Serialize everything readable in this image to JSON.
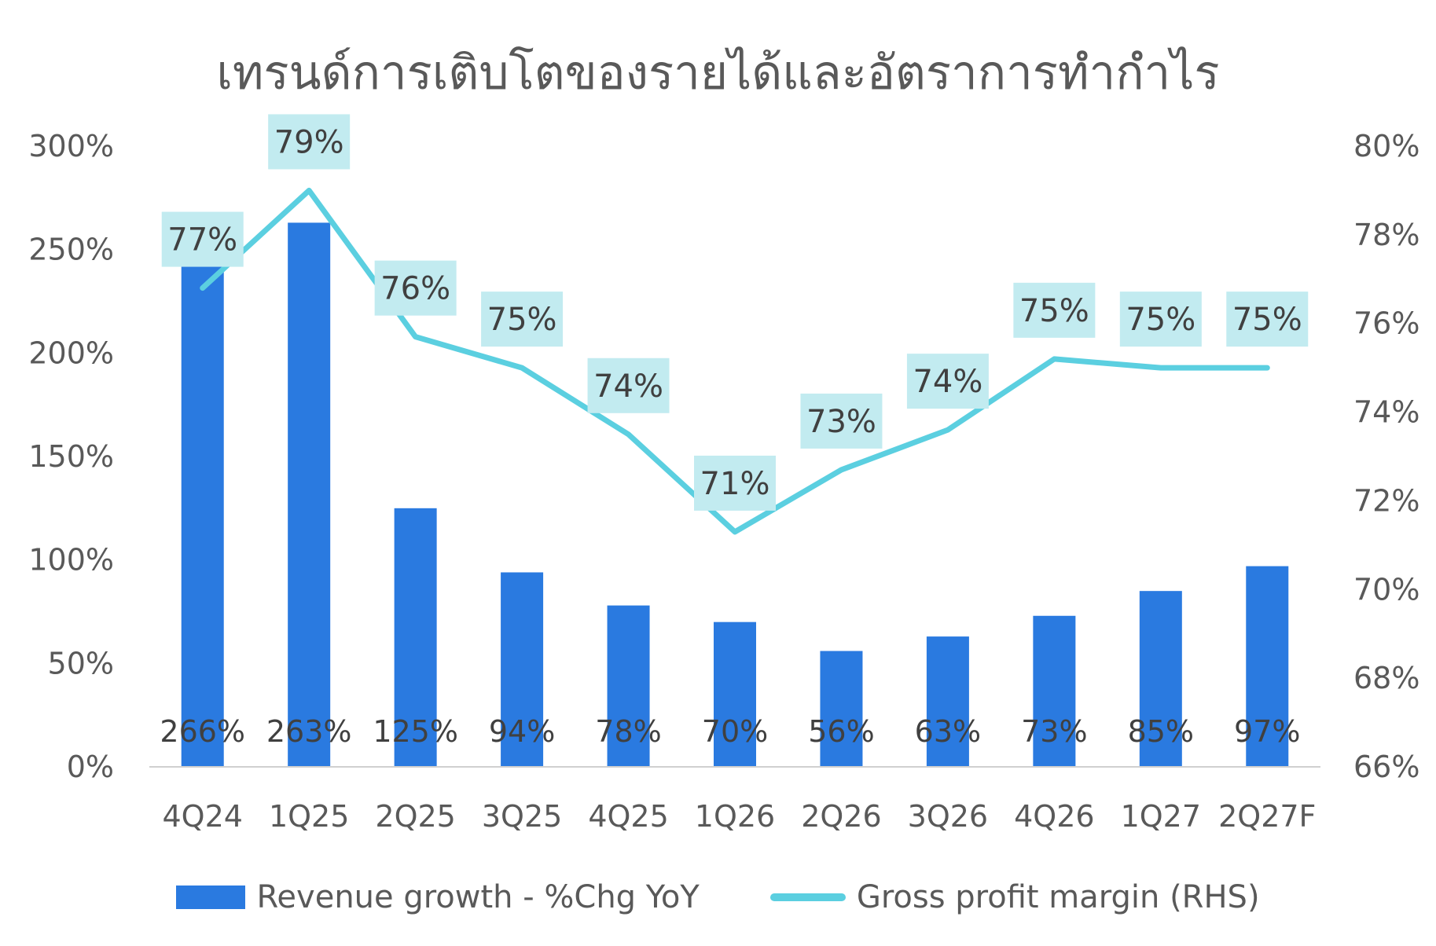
{
  "chart_data": {
    "type": "bar",
    "title": "เทรนด์การเติบโตของรายได้และอัตราการทำกำไร",
    "categories": [
      "4Q24",
      "1Q25",
      "2Q25",
      "3Q25",
      "4Q25",
      "1Q26",
      "2Q26",
      "3Q26",
      "4Q26",
      "1Q27",
      "2Q27F"
    ],
    "series": [
      {
        "name": "Revenue growth - %Chg YoY",
        "type": "bar",
        "axis": "left",
        "color": "#2a7ae0",
        "values": [
          266,
          263,
          125,
          94,
          78,
          70,
          56,
          63,
          73,
          85,
          97
        ],
        "labels": [
          "266%",
          "263%",
          "125%",
          "94%",
          "78%",
          "70%",
          "56%",
          "63%",
          "73%",
          "85%",
          "97%"
        ]
      },
      {
        "name": "Gross profit margin (RHS)",
        "type": "line",
        "axis": "right",
        "color": "#5bcfe0",
        "values": [
          76.8,
          79.0,
          75.7,
          75.0,
          73.5,
          71.3,
          72.7,
          73.6,
          75.2,
          75.0,
          75.0
        ],
        "labels": [
          "77%",
          "79%",
          "76%",
          "75%",
          "74%",
          "71%",
          "73%",
          "74%",
          "75%",
          "75%",
          "75%"
        ]
      }
    ],
    "y_left": {
      "min": 0,
      "max": 300,
      "ticks": [
        "0%",
        "50%",
        "100%",
        "150%",
        "200%",
        "250%",
        "300%"
      ]
    },
    "y_right": {
      "min": 66,
      "max": 80,
      "ticks": [
        "66%",
        "68%",
        "70%",
        "72%",
        "74%",
        "76%",
        "78%",
        "80%"
      ]
    },
    "legend_position": "bottom",
    "grid": false
  }
}
